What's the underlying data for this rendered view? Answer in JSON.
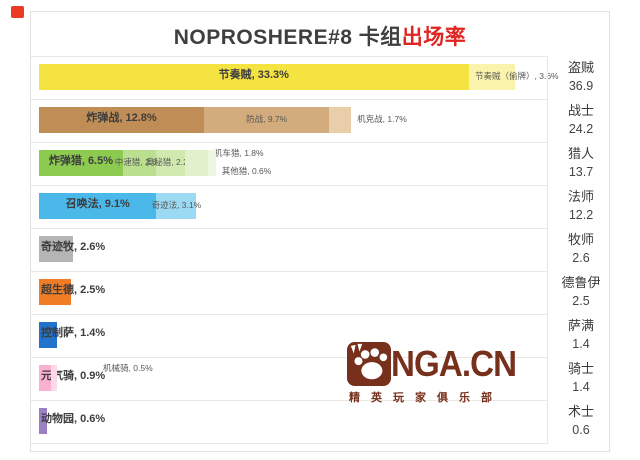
{
  "title": {
    "main": "NOPROSHERE#8 卡组",
    "highlight": "出场率"
  },
  "watermark": {
    "brand": "NGA.CN",
    "tagline": "精英玩家俱乐部",
    "color": "#77301c"
  },
  "chart_data": {
    "type": "bar",
    "orientation": "horizontal-stacked",
    "unit": "%",
    "title": "NOPROSHERE#8 卡组出场率",
    "legend_position": "none",
    "grid": "row-separators",
    "rows": [
      {
        "class": "盗贼",
        "total": 36.9,
        "segments": [
          {
            "name": "节奏贼",
            "value": 33.3,
            "label": "节奏贼, 33.3%",
            "color": "#f4e340",
            "label_pos": "center-bold"
          },
          {
            "name": "节奏贼（偷牌）",
            "value": 3.6,
            "label": "节奏贼（偷牌）, 3.6%",
            "color": "#faf3ab",
            "label_pos": "end-small"
          }
        ]
      },
      {
        "class": "战士",
        "total": 24.2,
        "segments": [
          {
            "name": "炸弹战",
            "value": 12.8,
            "label": "炸弹战, 12.8%",
            "color": "#bf8d55",
            "label_pos": "center-bold"
          },
          {
            "name": "防战",
            "value": 9.7,
            "label": "防战, 9.7%",
            "color": "#d3ac7d",
            "label_pos": "center-small"
          },
          {
            "name": "机克战",
            "value": 1.7,
            "label": "机克战, 1.7%",
            "color": "#e8cfa9",
            "label_pos": "after-small"
          }
        ]
      },
      {
        "class": "猎人",
        "total": 13.7,
        "segments": [
          {
            "name": "炸弹猎",
            "value": 6.5,
            "label": "炸弹猎, 6.5%",
            "color": "#8ccb4f",
            "label_pos": "center-bold"
          },
          {
            "name": "中速猎",
            "value": 2.6,
            "label": "中速猎, 2.6%",
            "color": "#badf8f",
            "label_pos": "center-small"
          },
          {
            "name": "奥秘猎",
            "value": 2.2,
            "label": "奥秘猎, 2.2%",
            "color": "#d0e9ae",
            "label_pos": "center-small"
          },
          {
            "name": "机车猎",
            "value": 1.8,
            "label": "机车猎, 1.8%",
            "color": "#e2f1cc",
            "label_pos": "after-small-up"
          },
          {
            "name": "其他猎",
            "value": 0.6,
            "label": "其他猎, 0.6%",
            "color": "#edf7e0",
            "label_pos": "after-small-down"
          }
        ]
      },
      {
        "class": "法师",
        "total": 12.2,
        "segments": [
          {
            "name": "召唤法",
            "value": 9.1,
            "label": "召唤法, 9.1%",
            "color": "#4ab9e9",
            "label_pos": "center-bold"
          },
          {
            "name": "奇迹法",
            "value": 3.1,
            "label": "奇迹法, 3.1%",
            "color": "#9cd9f3",
            "label_pos": "center-small"
          }
        ]
      },
      {
        "class": "牧师",
        "total": 2.6,
        "segments": [
          {
            "name": "奇迹牧",
            "value": 2.6,
            "label": "奇迹牧, 2.6%",
            "color": "#b5b5b5",
            "label_pos": "start-bold"
          }
        ]
      },
      {
        "class": "德鲁伊",
        "total": 2.5,
        "segments": [
          {
            "name": "超生德",
            "value": 2.5,
            "label": "超生德, 2.5%",
            "color": "#f07d25",
            "label_pos": "start-bold"
          }
        ]
      },
      {
        "class": "萨满",
        "total": 1.4,
        "segments": [
          {
            "name": "控制萨",
            "value": 1.4,
            "label": "控制萨, 1.4%",
            "color": "#2273cd",
            "label_pos": "start-bold"
          }
        ]
      },
      {
        "class": "骑士",
        "total": 1.4,
        "segments": [
          {
            "name": "元气骑",
            "value": 0.9,
            "label": "元气骑, 0.9%",
            "color": "#f9b0d1",
            "label_pos": "start-bold"
          },
          {
            "name": "机械骑",
            "value": 0.5,
            "label": "机械骑, 0.5%",
            "color": "#fcd9e9",
            "label_pos": "after-small-up",
            "label_dx": 40
          }
        ]
      },
      {
        "class": "术士",
        "total": 0.6,
        "segments": [
          {
            "name": "动物园",
            "value": 0.6,
            "label": "动物园, 0.6%",
            "color": "#9c80c4",
            "label_pos": "start-bold"
          }
        ]
      }
    ]
  }
}
